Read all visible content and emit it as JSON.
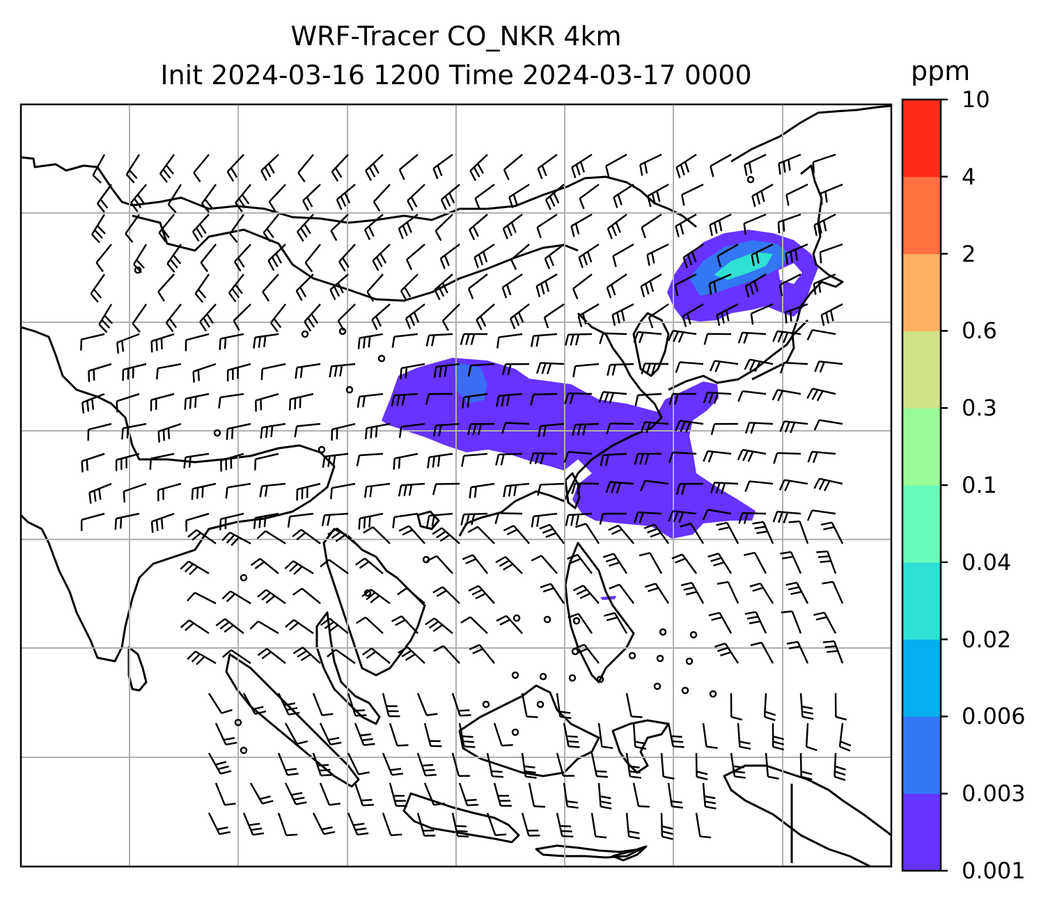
{
  "title_line1": "WRF-Tracer CO_NKR 4km",
  "title_line2": "Init 2024-03-16 1200 Time 2024-03-17 0000",
  "colorbar": {
    "unit": "ppm",
    "ticks": [
      "0.001",
      "0.003",
      "0.006",
      "0.02",
      "0.04",
      "0.1",
      "0.3",
      "0.6",
      "2",
      "4",
      "10"
    ],
    "colors": [
      "#6633ff",
      "#3377f5",
      "#03b0ef",
      "#2fe0d4",
      "#68fbbc",
      "#98fb98",
      "#cfe288",
      "#fdb062",
      "#ff7040",
      "#ff2a1a"
    ]
  },
  "grid": {
    "color": "#b0b0b0"
  },
  "wind_barb_color": "#000000",
  "coastline_color": "#000000"
}
